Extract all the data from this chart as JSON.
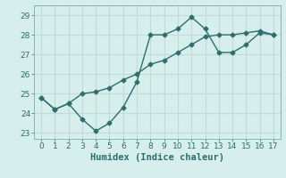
{
  "line1_x": [
    0,
    1,
    2,
    3,
    4,
    5,
    6,
    7,
    8,
    9,
    10,
    11,
    12,
    13,
    14,
    15,
    16,
    17
  ],
  "line1_y": [
    24.8,
    24.2,
    24.5,
    25.0,
    25.1,
    25.3,
    25.7,
    26.0,
    26.5,
    26.7,
    27.1,
    27.5,
    27.9,
    28.0,
    28.0,
    28.1,
    28.2,
    28.0
  ],
  "line2_x": [
    0,
    1,
    2,
    3,
    4,
    5,
    6,
    7,
    8,
    9,
    10,
    11,
    12,
    13,
    14,
    15,
    16,
    17
  ],
  "line2_y": [
    24.8,
    24.2,
    24.5,
    23.7,
    23.1,
    23.5,
    24.3,
    25.6,
    28.0,
    28.0,
    28.3,
    28.9,
    28.3,
    27.1,
    27.1,
    27.5,
    28.1,
    28.0
  ],
  "line_color": "#2e6e6e",
  "marker": "D",
  "marker_size": 2.5,
  "xlabel": "Humidex (Indice chaleur)",
  "xlabel_fontsize": 7.5,
  "xlim": [
    -0.5,
    17.5
  ],
  "ylim": [
    22.7,
    29.5
  ],
  "yticks": [
    23,
    24,
    25,
    26,
    27,
    28,
    29
  ],
  "xticks": [
    0,
    1,
    2,
    3,
    4,
    5,
    6,
    7,
    8,
    9,
    10,
    11,
    12,
    13,
    14,
    15,
    16,
    17
  ],
  "bg_color": "#d6eeec",
  "grid_color": "#c0dbd8",
  "tick_fontsize": 6.5,
  "linewidth": 1.0
}
